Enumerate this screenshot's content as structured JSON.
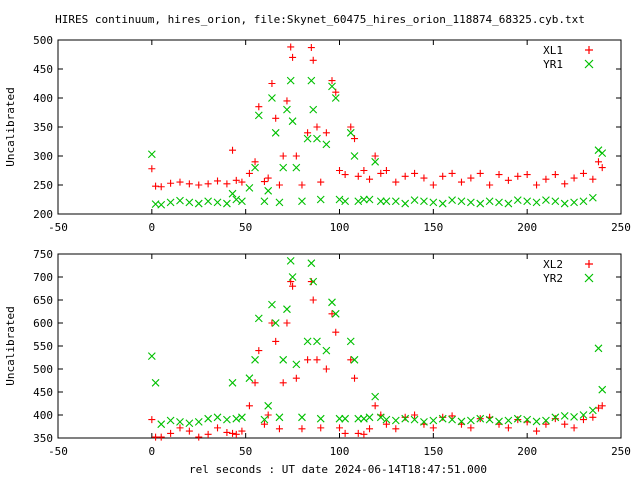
{
  "title": "HIRES continuum, hires_orion, file:Skynet_60475_hires_orion_118874_68325.cyb.txt",
  "xlabel": "rel seconds : UT date 2024-06-14T18:47:51.000",
  "chart_data": [
    {
      "type": "scatter",
      "ylabel": "Uncalibrated",
      "xlim": [
        -50,
        250
      ],
      "ylim": [
        200,
        500
      ],
      "xticks": [
        -50,
        0,
        50,
        100,
        150,
        200,
        250
      ],
      "yticks": [
        200,
        250,
        300,
        350,
        400,
        450,
        500
      ],
      "legend_position": "top-right",
      "series": [
        {
          "name": "XL1",
          "color": "#ff0000",
          "marker": "plus",
          "points": [
            [
              0,
              278
            ],
            [
              2,
              248
            ],
            [
              5,
              247
            ],
            [
              10,
              253
            ],
            [
              15,
              255
            ],
            [
              20,
              252
            ],
            [
              25,
              250
            ],
            [
              30,
              252
            ],
            [
              35,
              257
            ],
            [
              40,
              252
            ],
            [
              43,
              310
            ],
            [
              45,
              258
            ],
            [
              48,
              255
            ],
            [
              52,
              270
            ],
            [
              55,
              290
            ],
            [
              57,
              385
            ],
            [
              60,
              256
            ],
            [
              62,
              262
            ],
            [
              64,
              425
            ],
            [
              66,
              365
            ],
            [
              68,
              250
            ],
            [
              70,
              300
            ],
            [
              72,
              395
            ],
            [
              74,
              488
            ],
            [
              75,
              470
            ],
            [
              77,
              300
            ],
            [
              80,
              250
            ],
            [
              83,
              340
            ],
            [
              85,
              487
            ],
            [
              86,
              465
            ],
            [
              88,
              350
            ],
            [
              90,
              255
            ],
            [
              93,
              340
            ],
            [
              96,
              430
            ],
            [
              98,
              410
            ],
            [
              100,
              275
            ],
            [
              103,
              268
            ],
            [
              106,
              350
            ],
            [
              108,
              330
            ],
            [
              110,
              265
            ],
            [
              113,
              275
            ],
            [
              116,
              260
            ],
            [
              119,
              300
            ],
            [
              122,
              270
            ],
            [
              125,
              275
            ],
            [
              130,
              255
            ],
            [
              135,
              265
            ],
            [
              140,
              270
            ],
            [
              145,
              262
            ],
            [
              150,
              250
            ],
            [
              155,
              265
            ],
            [
              160,
              270
            ],
            [
              165,
              255
            ],
            [
              170,
              262
            ],
            [
              175,
              270
            ],
            [
              180,
              250
            ],
            [
              185,
              268
            ],
            [
              190,
              258
            ],
            [
              195,
              265
            ],
            [
              200,
              268
            ],
            [
              205,
              250
            ],
            [
              210,
              260
            ],
            [
              215,
              268
            ],
            [
              220,
              252
            ],
            [
              225,
              262
            ],
            [
              230,
              270
            ],
            [
              235,
              260
            ],
            [
              238,
              290
            ],
            [
              240,
              280
            ]
          ]
        },
        {
          "name": "YR1",
          "color": "#00c000",
          "marker": "cross",
          "points": [
            [
              0,
              303
            ],
            [
              2,
              217
            ],
            [
              5,
              216
            ],
            [
              10,
              220
            ],
            [
              15,
              223
            ],
            [
              20,
              220
            ],
            [
              25,
              218
            ],
            [
              30,
              222
            ],
            [
              35,
              220
            ],
            [
              40,
              218
            ],
            [
              43,
              235
            ],
            [
              45,
              225
            ],
            [
              48,
              222
            ],
            [
              52,
              245
            ],
            [
              55,
              280
            ],
            [
              57,
              370
            ],
            [
              60,
              222
            ],
            [
              62,
              240
            ],
            [
              64,
              400
            ],
            [
              66,
              340
            ],
            [
              68,
              220
            ],
            [
              70,
              280
            ],
            [
              72,
              380
            ],
            [
              74,
              430
            ],
            [
              75,
              360
            ],
            [
              77,
              280
            ],
            [
              80,
              222
            ],
            [
              83,
              330
            ],
            [
              85,
              430
            ],
            [
              86,
              380
            ],
            [
              88,
              330
            ],
            [
              90,
              225
            ],
            [
              93,
              320
            ],
            [
              96,
              420
            ],
            [
              98,
              400
            ],
            [
              100,
              225
            ],
            [
              103,
              222
            ],
            [
              106,
              340
            ],
            [
              108,
              300
            ],
            [
              110,
              222
            ],
            [
              113,
              225
            ],
            [
              116,
              225
            ],
            [
              119,
              290
            ],
            [
              122,
              222
            ],
            [
              125,
              222
            ],
            [
              130,
              222
            ],
            [
              135,
              218
            ],
            [
              140,
              224
            ],
            [
              145,
              222
            ],
            [
              150,
              220
            ],
            [
              155,
              218
            ],
            [
              160,
              224
            ],
            [
              165,
              222
            ],
            [
              170,
              220
            ],
            [
              175,
              218
            ],
            [
              180,
              222
            ],
            [
              185,
              220
            ],
            [
              190,
              218
            ],
            [
              195,
              224
            ],
            [
              200,
              222
            ],
            [
              205,
              220
            ],
            [
              210,
              224
            ],
            [
              215,
              222
            ],
            [
              220,
              218
            ],
            [
              225,
              220
            ],
            [
              230,
              222
            ],
            [
              235,
              228
            ],
            [
              238,
              310
            ],
            [
              240,
              305
            ]
          ]
        }
      ]
    },
    {
      "type": "scatter",
      "ylabel": "Uncalibrated",
      "xlim": [
        -50,
        250
      ],
      "ylim": [
        350,
        750
      ],
      "xticks": [
        -50,
        0,
        50,
        100,
        150,
        200,
        250
      ],
      "yticks": [
        350,
        400,
        450,
        500,
        550,
        600,
        650,
        700,
        750
      ],
      "legend_position": "top-right",
      "series": [
        {
          "name": "XL2",
          "color": "#ff0000",
          "marker": "plus",
          "points": [
            [
              0,
              390
            ],
            [
              2,
              352
            ],
            [
              5,
              352
            ],
            [
              10,
              360
            ],
            [
              15,
              372
            ],
            [
              20,
              365
            ],
            [
              25,
              352
            ],
            [
              30,
              358
            ],
            [
              35,
              372
            ],
            [
              40,
              362
            ],
            [
              43,
              360
            ],
            [
              45,
              358
            ],
            [
              48,
              365
            ],
            [
              52,
              420
            ],
            [
              55,
              470
            ],
            [
              57,
              540
            ],
            [
              60,
              380
            ],
            [
              62,
              400
            ],
            [
              64,
              600
            ],
            [
              66,
              560
            ],
            [
              68,
              370
            ],
            [
              70,
              470
            ],
            [
              72,
              600
            ],
            [
              74,
              690
            ],
            [
              75,
              680
            ],
            [
              77,
              480
            ],
            [
              80,
              370
            ],
            [
              83,
              520
            ],
            [
              85,
              690
            ],
            [
              86,
              650
            ],
            [
              88,
              520
            ],
            [
              90,
              372
            ],
            [
              93,
              500
            ],
            [
              96,
              620
            ],
            [
              98,
              580
            ],
            [
              100,
              372
            ],
            [
              103,
              360
            ],
            [
              106,
              520
            ],
            [
              108,
              480
            ],
            [
              110,
              360
            ],
            [
              113,
              358
            ],
            [
              116,
              370
            ],
            [
              119,
              420
            ],
            [
              122,
              400
            ],
            [
              125,
              380
            ],
            [
              130,
              370
            ],
            [
              135,
              395
            ],
            [
              140,
              400
            ],
            [
              145,
              380
            ],
            [
              150,
              372
            ],
            [
              155,
              395
            ],
            [
              160,
              398
            ],
            [
              165,
              380
            ],
            [
              170,
              372
            ],
            [
              175,
              392
            ],
            [
              180,
              395
            ],
            [
              185,
              380
            ],
            [
              190,
              372
            ],
            [
              195,
              390
            ],
            [
              200,
              385
            ],
            [
              205,
              365
            ],
            [
              210,
              380
            ],
            [
              215,
              392
            ],
            [
              220,
              380
            ],
            [
              225,
              372
            ],
            [
              230,
              390
            ],
            [
              235,
              395
            ],
            [
              238,
              415
            ],
            [
              240,
              420
            ]
          ]
        },
        {
          "name": "YR2",
          "color": "#00c000",
          "marker": "cross",
          "points": [
            [
              0,
              528
            ],
            [
              2,
              470
            ],
            [
              5,
              380
            ],
            [
              10,
              388
            ],
            [
              15,
              385
            ],
            [
              20,
              382
            ],
            [
              25,
              385
            ],
            [
              30,
              392
            ],
            [
              35,
              395
            ],
            [
              40,
              390
            ],
            [
              43,
              470
            ],
            [
              45,
              392
            ],
            [
              48,
              395
            ],
            [
              52,
              480
            ],
            [
              55,
              520
            ],
            [
              57,
              610
            ],
            [
              60,
              390
            ],
            [
              62,
              420
            ],
            [
              64,
              640
            ],
            [
              66,
              600
            ],
            [
              68,
              395
            ],
            [
              70,
              520
            ],
            [
              72,
              630
            ],
            [
              74,
              735
            ],
            [
              75,
              700
            ],
            [
              77,
              510
            ],
            [
              80,
              395
            ],
            [
              83,
              560
            ],
            [
              85,
              730
            ],
            [
              86,
              690
            ],
            [
              88,
              560
            ],
            [
              90,
              392
            ],
            [
              93,
              540
            ],
            [
              96,
              645
            ],
            [
              98,
              620
            ],
            [
              100,
              392
            ],
            [
              103,
              392
            ],
            [
              106,
              560
            ],
            [
              108,
              520
            ],
            [
              110,
              392
            ],
            [
              113,
              392
            ],
            [
              116,
              395
            ],
            [
              119,
              440
            ],
            [
              122,
              395
            ],
            [
              125,
              390
            ],
            [
              130,
              388
            ],
            [
              135,
              392
            ],
            [
              140,
              390
            ],
            [
              145,
              385
            ],
            [
              150,
              388
            ],
            [
              155,
              392
            ],
            [
              160,
              390
            ],
            [
              165,
              386
            ],
            [
              170,
              388
            ],
            [
              175,
              392
            ],
            [
              180,
              390
            ],
            [
              185,
              386
            ],
            [
              190,
              388
            ],
            [
              195,
              392
            ],
            [
              200,
              390
            ],
            [
              205,
              386
            ],
            [
              210,
              388
            ],
            [
              215,
              395
            ],
            [
              220,
              398
            ],
            [
              225,
              396
            ],
            [
              230,
              400
            ],
            [
              235,
              410
            ],
            [
              238,
              545
            ],
            [
              240,
              455
            ]
          ]
        }
      ]
    }
  ]
}
